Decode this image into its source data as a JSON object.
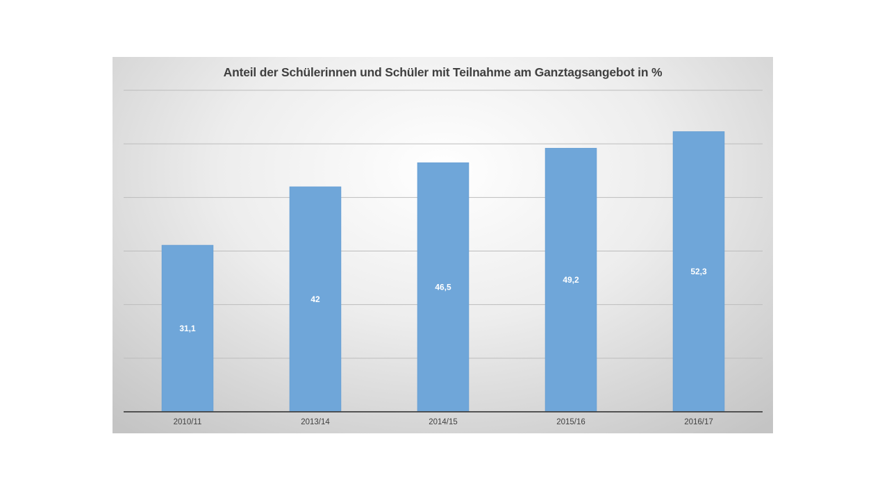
{
  "chart_data": {
    "type": "bar",
    "title": "Anteil der Schülerinnen und Schüler mit Teilnahme am Ganztagsangebot in %",
    "categories": [
      "2010/11",
      "2013/14",
      "2014/15",
      "2015/16",
      "2016/17"
    ],
    "values": [
      31.1,
      42,
      46.5,
      49.2,
      52.3
    ],
    "value_labels": [
      "31,1",
      "42",
      "46,5",
      "49,2",
      "52,3"
    ],
    "xlabel": "",
    "ylabel": "",
    "ylim": [
      0,
      60
    ],
    "y_gridlines": [
      10,
      20,
      30,
      40,
      50,
      60
    ],
    "y_tick_labels_visible": false,
    "grid": true,
    "legend": "none",
    "colors": {
      "bar": "#6fa6d9",
      "bar_edge": "#5f98cf",
      "gridline": "#bcbcbc",
      "axis": "#404040",
      "bar_label": "#ffffff"
    }
  }
}
